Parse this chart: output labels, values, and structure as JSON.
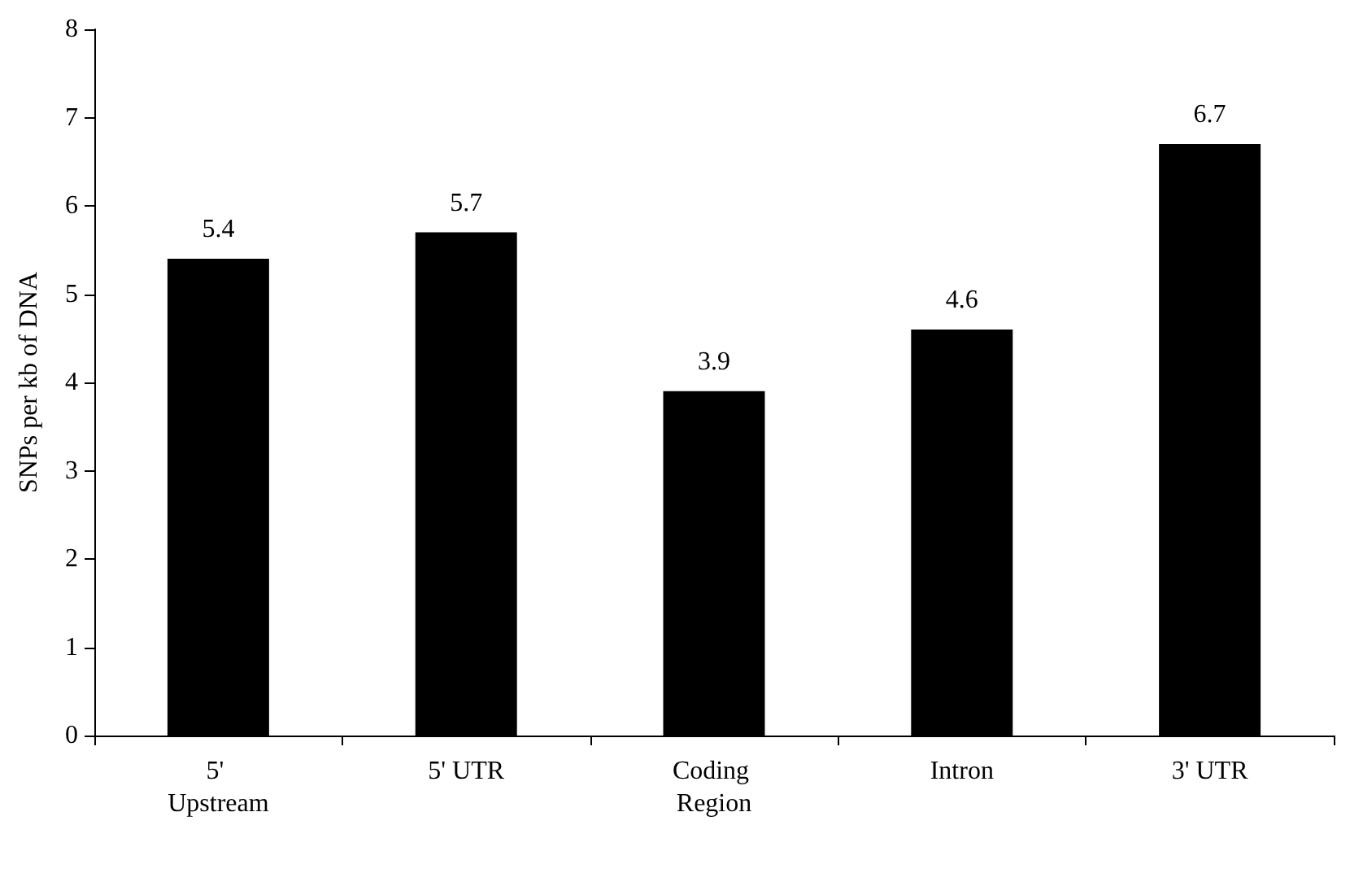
{
  "chart_data": {
    "type": "bar",
    "ylabel": "SNPs per kb of DNA",
    "categories": [
      "5' Upstream",
      "5' UTR",
      "Coding Region",
      "Intron",
      "3' UTR"
    ],
    "values": [
      5.4,
      5.7,
      3.9,
      4.6,
      6.7
    ],
    "color": "#000000",
    "ylim": [
      0,
      8
    ],
    "yticks": [
      0,
      1,
      2,
      3,
      4,
      5,
      6,
      7,
      8
    ],
    "grid": false,
    "data_labels": true
  }
}
